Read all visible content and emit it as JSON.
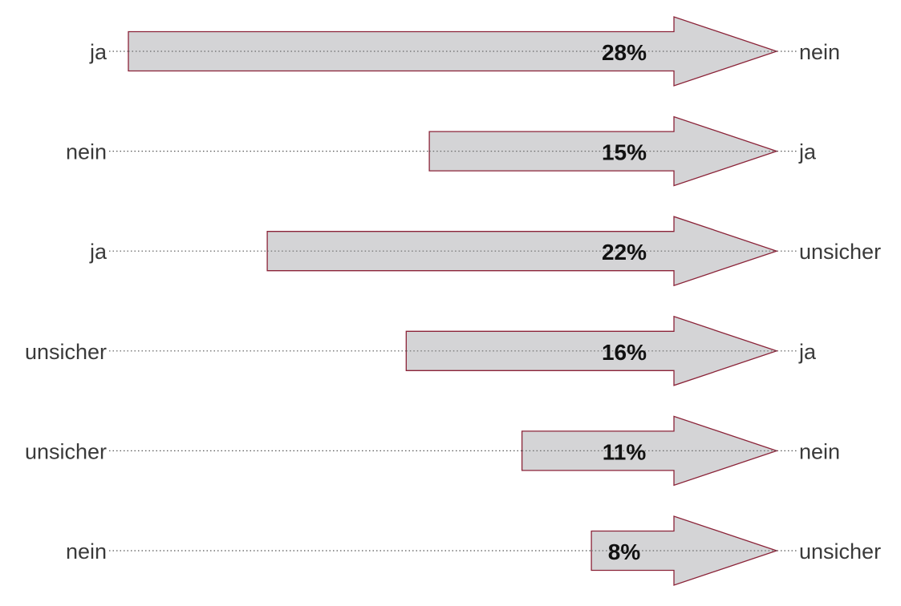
{
  "colors": {
    "arrow_fill": "#d4d4d6",
    "arrow_stroke": "#8b2338",
    "guide_line": "#555555",
    "label_text": "#3a3a3a",
    "value_text": "#111111"
  },
  "chart_data": {
    "type": "bar",
    "orientation": "horizontal",
    "mark": "arrow",
    "value_unit": "%",
    "xlim": [
      0,
      28
    ],
    "grid": false,
    "rows": [
      {
        "from": "ja",
        "to": "nein",
        "value": 28,
        "value_label": "28%"
      },
      {
        "from": "nein",
        "to": "ja",
        "value": 15,
        "value_label": "15%"
      },
      {
        "from": "ja",
        "to": "unsicher",
        "value": 22,
        "value_label": "22%"
      },
      {
        "from": "unsicher",
        "to": "ja",
        "value": 16,
        "value_label": "16%"
      },
      {
        "from": "unsicher",
        "to": "nein",
        "value": 11,
        "value_label": "11%"
      },
      {
        "from": "nein",
        "to": "unsicher",
        "value": 8,
        "value_label": "8%"
      }
    ]
  }
}
